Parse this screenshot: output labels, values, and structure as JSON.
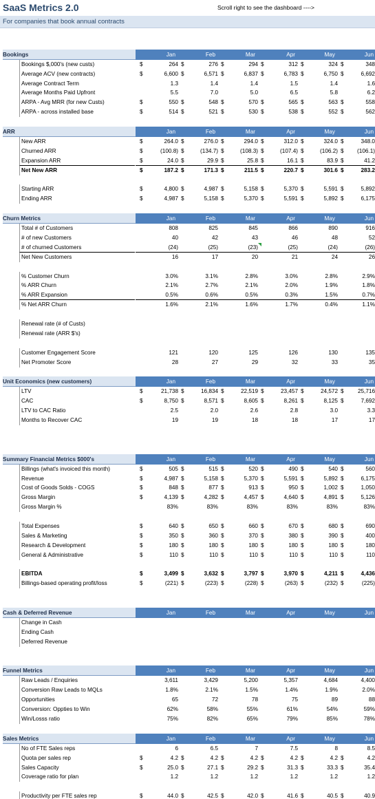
{
  "title": "SaaS Metrics 2.0",
  "hint": "Scroll right to see the dashboard ---->",
  "subtitle": "For companies that book annual contracts",
  "months": [
    "Jan",
    "Feb",
    "Mar",
    "Apr",
    "May",
    "Jun"
  ],
  "rows": [
    {
      "t": "blank"
    },
    {
      "t": "blank"
    },
    {
      "t": "sec",
      "label": "Bookings"
    },
    {
      "t": "data",
      "label": "Bookings $,000's (new custs)",
      "d": true,
      "v": [
        "264",
        "276",
        "294",
        "312",
        "324",
        "348"
      ]
    },
    {
      "t": "data",
      "label": "Average ACV (new contracts)",
      "d": true,
      "v": [
        "6,600",
        "6,571",
        "6,837",
        "6,783",
        "6,750",
        "6,692"
      ]
    },
    {
      "t": "data",
      "label": "Average Contract Term",
      "v": [
        "1.3",
        "1.4",
        "1.4",
        "1.5",
        "1.4",
        "1.6"
      ]
    },
    {
      "t": "data",
      "label": "Average Months Paid Upfront",
      "v": [
        "5.5",
        "7.0",
        "5.0",
        "6.5",
        "5.8",
        "6.2"
      ]
    },
    {
      "t": "data",
      "label": "ARPA - Avg MRR (for new Custs)",
      "d": true,
      "v": [
        "550",
        "548",
        "570",
        "565",
        "563",
        "558"
      ]
    },
    {
      "t": "data",
      "label": "ARPA - across installed base",
      "d": true,
      "v": [
        "514",
        "521",
        "530",
        "538",
        "552",
        "562"
      ]
    },
    {
      "t": "blank"
    },
    {
      "t": "sec",
      "label": "ARR"
    },
    {
      "t": "data",
      "label": "New ARR",
      "d": true,
      "v": [
        "264.0",
        "276.0",
        "294.0",
        "312.0",
        "324.0",
        "348.0"
      ]
    },
    {
      "t": "data",
      "label": "Churned ARR",
      "d": true,
      "v": [
        "(100.8)",
        "(134.7)",
        "(108.3)",
        "(107.4)",
        "(106.2)",
        "(106.1)"
      ]
    },
    {
      "t": "data",
      "label": "Expansion ARR",
      "d": true,
      "line": true,
      "v": [
        "24.0",
        "29.9",
        "25.8",
        "16.1",
        "83.9",
        "41.2"
      ]
    },
    {
      "t": "data",
      "label": "Net New ARR",
      "d": true,
      "bold": true,
      "v": [
        "187.2",
        "171.3",
        "211.5",
        "220.7",
        "301.6",
        "283.2"
      ]
    },
    {
      "t": "blank"
    },
    {
      "t": "data",
      "label": "Starting ARR",
      "d": true,
      "v": [
        "4,800",
        "4,987",
        "5,158",
        "5,370",
        "5,591",
        "5,892"
      ]
    },
    {
      "t": "data",
      "label": "Ending ARR",
      "d": true,
      "v": [
        "4,987",
        "5,158",
        "5,370",
        "5,591",
        "5,892",
        "6,175"
      ]
    },
    {
      "t": "blank"
    },
    {
      "t": "sec",
      "label": "Churn Metrics"
    },
    {
      "t": "data",
      "label": "Total # of Customers",
      "v": [
        "808",
        "825",
        "845",
        "866",
        "890",
        "916"
      ]
    },
    {
      "t": "data",
      "label": "# of new Customers",
      "v": [
        "40",
        "42",
        "43",
        "46",
        "48",
        "52"
      ]
    },
    {
      "t": "data",
      "label": "# of churned Customers",
      "line": true,
      "tri": true,
      "v": [
        "(24)",
        "(25)",
        "(23)",
        "(25)",
        "(24)",
        "(26)"
      ]
    },
    {
      "t": "data",
      "label": "Net New Customers",
      "v": [
        "16",
        "17",
        "20",
        "21",
        "24",
        "26"
      ]
    },
    {
      "t": "blank"
    },
    {
      "t": "data",
      "label": "% Customer Churn",
      "v": [
        "3.0%",
        "3.1%",
        "2.8%",
        "3.0%",
        "2.8%",
        "2.9%"
      ]
    },
    {
      "t": "data",
      "label": "% ARR Churn",
      "v": [
        "2.1%",
        "2.7%",
        "2.1%",
        "2.0%",
        "1.9%",
        "1.8%"
      ]
    },
    {
      "t": "data",
      "label": "% ARR Expansion",
      "line": true,
      "v": [
        "0.5%",
        "0.6%",
        "0.5%",
        "0.3%",
        "1.5%",
        "0.7%"
      ]
    },
    {
      "t": "data",
      "label": "% Net ARR Churn",
      "v": [
        "1.6%",
        "2.1%",
        "1.6%",
        "1.7%",
        "0.4%",
        "1.1%"
      ]
    },
    {
      "t": "blank"
    },
    {
      "t": "data",
      "label": "Renewal rate (# of Custs)",
      "v": [
        "",
        "",
        "",
        "",
        "",
        ""
      ]
    },
    {
      "t": "data",
      "label": "Renewal rate (ARR $'s)",
      "v": [
        "",
        "",
        "",
        "",
        "",
        ""
      ]
    },
    {
      "t": "blank"
    },
    {
      "t": "data",
      "label": "Customer Engagement Score",
      "v": [
        "121",
        "120",
        "125",
        "126",
        "130",
        "135"
      ]
    },
    {
      "t": "data",
      "label": "Net Promoter Score",
      "v": [
        "28",
        "27",
        "29",
        "32",
        "33",
        "35"
      ]
    },
    {
      "t": "blank"
    },
    {
      "t": "sec",
      "label": "Unit Economics (new customers)"
    },
    {
      "t": "data",
      "label": "LTV",
      "d": true,
      "v": [
        "21,738",
        "16,834",
        "22,519",
        "23,457",
        "24,572",
        "25,716"
      ]
    },
    {
      "t": "data",
      "label": "CAC",
      "d": true,
      "v": [
        "8,750",
        "8,571",
        "8,605",
        "8,261",
        "8,125",
        "7,692"
      ]
    },
    {
      "t": "data",
      "label": "LTV to CAC Ratio",
      "v": [
        "2.5",
        "2.0",
        "2.6",
        "2.8",
        "3.0",
        "3.3"
      ]
    },
    {
      "t": "data",
      "label": "Months to Recover CAC",
      "v": [
        "19",
        "19",
        "18",
        "18",
        "17",
        "17"
      ]
    },
    {
      "t": "blank"
    },
    {
      "t": "blank"
    },
    {
      "t": "blank"
    },
    {
      "t": "sec",
      "label": "Summary Financial Metrics $000's"
    },
    {
      "t": "data",
      "label": "Billings (what's invoiced this month)",
      "d": true,
      "v": [
        "505",
        "515",
        "520",
        "490",
        "540",
        "560"
      ]
    },
    {
      "t": "data",
      "label": "Revenue",
      "d": true,
      "v": [
        "4,987",
        "5,158",
        "5,370",
        "5,591",
        "5,892",
        "6,175"
      ]
    },
    {
      "t": "data",
      "label": "Cost of Goods Solds - COGS",
      "d": true,
      "v": [
        "848",
        "877",
        "913",
        "950",
        "1,002",
        "1,050"
      ]
    },
    {
      "t": "data",
      "label": "Gross Margin",
      "d": true,
      "v": [
        "4,139",
        "4,282",
        "4,457",
        "4,640",
        "4,891",
        "5,126"
      ]
    },
    {
      "t": "data",
      "label": "Gross Margin %",
      "v": [
        "83%",
        "83%",
        "83%",
        "83%",
        "83%",
        "83%"
      ]
    },
    {
      "t": "blank"
    },
    {
      "t": "data",
      "label": "Total Expenses",
      "d": true,
      "v": [
        "640",
        "650",
        "660",
        "670",
        "680",
        "690"
      ]
    },
    {
      "t": "data",
      "label": "   Sales & Marketing",
      "d": true,
      "v": [
        "350",
        "360",
        "370",
        "380",
        "390",
        "400"
      ]
    },
    {
      "t": "data",
      "label": "   Research & Development",
      "d": true,
      "v": [
        "180",
        "180",
        "180",
        "180",
        "180",
        "180"
      ]
    },
    {
      "t": "data",
      "label": "   General & Administrative",
      "d": true,
      "v": [
        "110",
        "110",
        "110",
        "110",
        "110",
        "110"
      ]
    },
    {
      "t": "blank"
    },
    {
      "t": "data",
      "label": "EBITDA",
      "d": true,
      "bold": true,
      "v": [
        "3,499",
        "3,632",
        "3,797",
        "3,970",
        "4,211",
        "4,436"
      ]
    },
    {
      "t": "data",
      "label": "Billings-based operating profit/loss",
      "d": true,
      "v": [
        "(221)",
        "(223)",
        "(228)",
        "(263)",
        "(232)",
        "(225)"
      ]
    },
    {
      "t": "blank"
    },
    {
      "t": "blank"
    },
    {
      "t": "sec",
      "label": "Cash  & Deferred Revenue"
    },
    {
      "t": "data",
      "label": "Change in Cash",
      "v": [
        "",
        "",
        "",
        "",
        "",
        ""
      ]
    },
    {
      "t": "data",
      "label": "Ending Cash",
      "v": [
        "",
        "",
        "",
        "",
        "",
        ""
      ]
    },
    {
      "t": "data",
      "label": "Deferred Revenue",
      "v": [
        "",
        "",
        "",
        "",
        "",
        ""
      ]
    },
    {
      "t": "blank"
    },
    {
      "t": "blank"
    },
    {
      "t": "sec",
      "label": "Funnel Metrics"
    },
    {
      "t": "data",
      "label": "Raw Leads / Enquiries",
      "v": [
        "3,611",
        "3,429",
        "5,200",
        "5,357",
        "4,684",
        "4,400"
      ]
    },
    {
      "t": "data",
      "label": "Conversion Raw Leads to MQLs",
      "v": [
        "1.8%",
        "2.1%",
        "1.5%",
        "1.4%",
        "1.9%",
        "2.0%"
      ]
    },
    {
      "t": "data",
      "label": "Opportunities",
      "v": [
        "65",
        "72",
        "78",
        "75",
        "89",
        "88"
      ]
    },
    {
      "t": "data",
      "label": "Conversion: Oppties to Win",
      "v": [
        "62%",
        "58%",
        "55%",
        "61%",
        "54%",
        "59%"
      ]
    },
    {
      "t": "data",
      "label": "Win/Losss ratio",
      "v": [
        "75%",
        "82%",
        "65%",
        "79%",
        "85%",
        "78%"
      ]
    },
    {
      "t": "blank"
    },
    {
      "t": "sec",
      "label": "Sales Metrics"
    },
    {
      "t": "data",
      "label": "No of FTE Sales reps",
      "v": [
        "6",
        "6.5",
        "7",
        "7.5",
        "8",
        "8.5"
      ]
    },
    {
      "t": "data",
      "label": "Quota per sales rep",
      "d": true,
      "v": [
        "4.2",
        "4.2",
        "4.2",
        "4.2",
        "4.2",
        "4.2"
      ]
    },
    {
      "t": "data",
      "label": "Sales Capacity",
      "d": true,
      "v": [
        "25.0",
        "27.1",
        "29.2",
        "31.3",
        "33.3",
        "35.4"
      ]
    },
    {
      "t": "data",
      "label": "Coverage ratio for plan",
      "v": [
        "1.2",
        "1.2",
        "1.2",
        "1.2",
        "1.2",
        "1.2"
      ]
    },
    {
      "t": "blank"
    },
    {
      "t": "data",
      "label": "Productivity per FTE sales rep",
      "d": true,
      "v": [
        "44.0",
        "42.5",
        "42.0",
        "41.6",
        "40.5",
        "40.9"
      ]
    }
  ]
}
